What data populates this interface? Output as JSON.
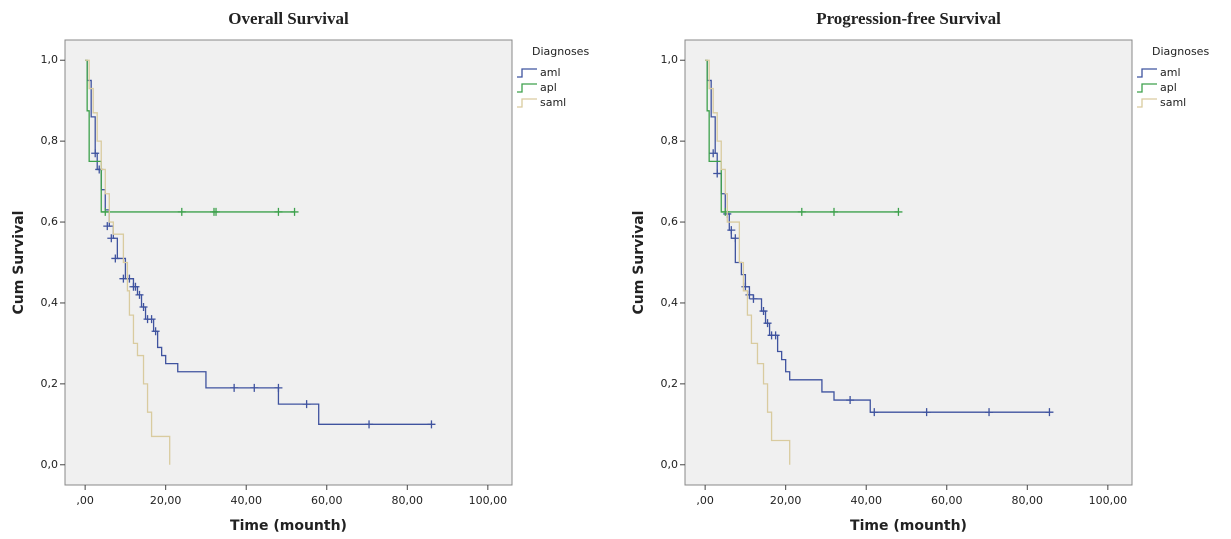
{
  "chart_data": [
    {
      "type": "step",
      "title": "Overall Survival",
      "x_label": "Time (mounth)",
      "y_label": "Cum Survival",
      "legend_title": "Diagnoses",
      "xlim": [
        -5,
        106
      ],
      "ylim": [
        -0.05,
        1.05
      ],
      "xticks": [
        {
          "value": 0,
          "label": ",00"
        },
        {
          "value": 20,
          "label": "20,00"
        },
        {
          "value": 40,
          "label": "40,00"
        },
        {
          "value": 60,
          "label": "60,00"
        },
        {
          "value": 80,
          "label": "80,00"
        },
        {
          "value": 100,
          "label": "100,00"
        }
      ],
      "yticks": [
        {
          "value": 0,
          "label": "0,0"
        },
        {
          "value": 0.2,
          "label": "0,2"
        },
        {
          "value": 0.4,
          "label": "0,4"
        },
        {
          "value": 0.6,
          "label": "0,6"
        },
        {
          "value": 0.8,
          "label": "0,8"
        },
        {
          "value": 1,
          "label": "1,0"
        }
      ],
      "series": [
        {
          "name": "aml",
          "color": "#3f539f",
          "x": [
            0,
            0.5,
            1.5,
            2.5,
            3,
            4,
            5,
            6,
            7,
            8,
            10,
            12,
            13,
            14,
            15,
            17,
            18,
            19,
            20,
            23,
            30,
            48,
            58,
            86
          ],
          "values": [
            1,
            0.95,
            0.86,
            0.77,
            0.73,
            0.68,
            0.63,
            0.59,
            0.56,
            0.51,
            0.46,
            0.44,
            0.42,
            0.39,
            0.36,
            0.33,
            0.29,
            0.27,
            0.25,
            0.23,
            0.19,
            0.15,
            0.1,
            0.1
          ],
          "censor_x": [
            2.5,
            3.5,
            5.5,
            6.5,
            7.5,
            9.5,
            11,
            12,
            12.5,
            13.5,
            14.5,
            15.5,
            16.5,
            17.5,
            37,
            42,
            48,
            55,
            70.5,
            86
          ],
          "censor_values": [
            0.77,
            0.73,
            0.59,
            0.56,
            0.51,
            0.46,
            0.46,
            0.44,
            0.44,
            0.42,
            0.39,
            0.36,
            0.36,
            0.33,
            0.19,
            0.19,
            0.19,
            0.15,
            0.1,
            0.1
          ]
        },
        {
          "name": "apl",
          "color": "#3da14c",
          "x": [
            0,
            0.5,
            1,
            4,
            52
          ],
          "values": [
            1,
            0.875,
            0.75,
            0.625,
            0.625
          ],
          "censor_x": [
            5,
            24,
            32,
            32.5,
            48,
            52
          ],
          "censor_values": [
            0.625,
            0.625,
            0.625,
            0.625,
            0.625,
            0.625
          ]
        },
        {
          "name": "saml",
          "color": "#d9cb9f",
          "x": [
            0,
            1,
            2,
            3,
            4,
            5,
            6,
            7,
            9.5,
            10.5,
            11,
            12,
            13,
            14.5,
            15.5,
            16.5,
            21
          ],
          "values": [
            1,
            0.93,
            0.87,
            0.8,
            0.73,
            0.67,
            0.6,
            0.57,
            0.5,
            0.43,
            0.37,
            0.3,
            0.27,
            0.2,
            0.13,
            0.07,
            0
          ]
        }
      ]
    },
    {
      "type": "step",
      "title": "Progression-free Survival",
      "x_label": "Time (mounth)",
      "y_label": "Cum Survival",
      "legend_title": "Diagnoses",
      "xlim": [
        -5,
        106
      ],
      "ylim": [
        -0.05,
        1.05
      ],
      "xticks": [
        {
          "value": 0,
          "label": ",00"
        },
        {
          "value": 20,
          "label": "20,00"
        },
        {
          "value": 40,
          "label": "40,00"
        },
        {
          "value": 60,
          "label": "60,00"
        },
        {
          "value": 80,
          "label": "80,00"
        },
        {
          "value": 100,
          "label": "100,00"
        }
      ],
      "yticks": [
        {
          "value": 0,
          "label": "0,0"
        },
        {
          "value": 0.2,
          "label": "0,2"
        },
        {
          "value": 0.4,
          "label": "0,4"
        },
        {
          "value": 0.6,
          "label": "0,6"
        },
        {
          "value": 0.8,
          "label": "0,8"
        },
        {
          "value": 1,
          "label": "1,0"
        }
      ],
      "series": [
        {
          "name": "aml",
          "color": "#3f539f",
          "x": [
            0,
            0.5,
            1.5,
            2.5,
            3,
            4,
            5,
            6,
            6.5,
            7.5,
            9,
            10,
            11,
            12,
            14,
            15,
            16,
            18,
            19,
            20,
            21,
            29,
            32,
            41,
            85.5
          ],
          "values": [
            1,
            0.95,
            0.86,
            0.77,
            0.72,
            0.67,
            0.62,
            0.58,
            0.56,
            0.5,
            0.47,
            0.44,
            0.42,
            0.41,
            0.38,
            0.35,
            0.32,
            0.28,
            0.26,
            0.23,
            0.21,
            0.18,
            0.16,
            0.13,
            0.13
          ],
          "censor_x": [
            2,
            3,
            5.5,
            6.5,
            7.5,
            10,
            11,
            12,
            14.5,
            15.5,
            16.5,
            17.5,
            36,
            42,
            55,
            70.5,
            85.5
          ],
          "censor_values": [
            0.77,
            0.72,
            0.62,
            0.58,
            0.56,
            0.44,
            0.42,
            0.41,
            0.38,
            0.35,
            0.32,
            0.32,
            0.16,
            0.13,
            0.13,
            0.13,
            0.13
          ]
        },
        {
          "name": "apl",
          "color": "#3da14c",
          "x": [
            0,
            0.5,
            1,
            4,
            48
          ],
          "values": [
            1,
            0.875,
            0.75,
            0.625,
            0.625
          ],
          "censor_x": [
            5,
            24,
            32,
            48
          ],
          "censor_values": [
            0.625,
            0.625,
            0.625,
            0.625
          ]
        },
        {
          "name": "saml",
          "color": "#d9cb9f",
          "x": [
            0,
            1,
            2,
            3,
            4,
            5,
            5.5,
            8.5,
            9.5,
            10.5,
            11.5,
            13,
            14.5,
            15.5,
            16.5,
            21
          ],
          "values": [
            1,
            0.93,
            0.87,
            0.8,
            0.73,
            0.67,
            0.6,
            0.5,
            0.43,
            0.37,
            0.3,
            0.25,
            0.2,
            0.13,
            0.06,
            0
          ]
        }
      ]
    }
  ]
}
